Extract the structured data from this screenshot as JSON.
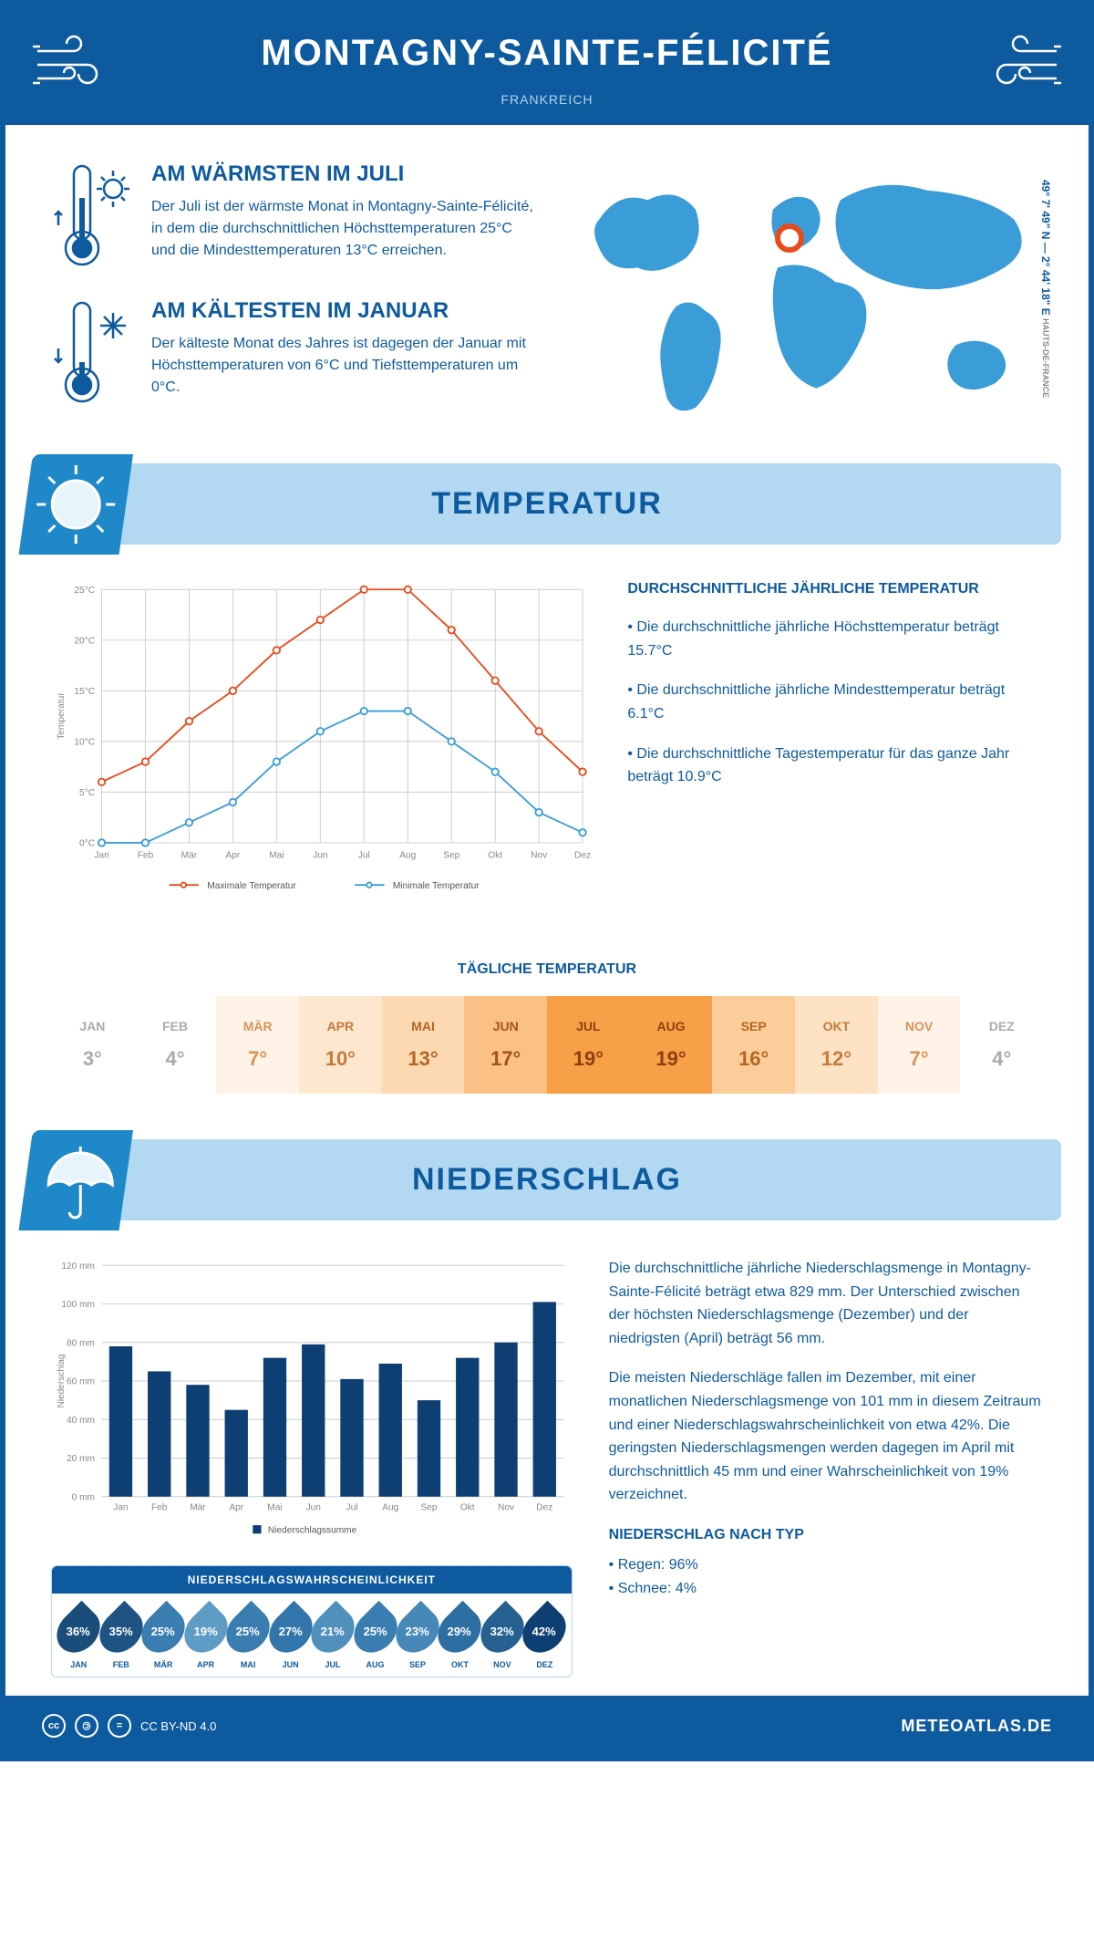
{
  "header": {
    "title": "MONTAGNY-SAINTE-FÉLICITÉ",
    "subtitle": "FRANKREICH"
  },
  "coords": {
    "main": "49° 7' 49\" N — 2° 44' 18\" E",
    "region": "HAUTS-DE-FRANCE"
  },
  "warmest": {
    "title": "AM WÄRMSTEN IM JULI",
    "text": "Der Juli ist der wärmste Monat in Montagny-Sainte-Félicité, in dem die durchschnittlichen Höchsttemperaturen 25°C und die Mindesttemperaturen 13°C erreichen."
  },
  "coldest": {
    "title": "AM KÄLTESTEN IM JANUAR",
    "text": "Der kälteste Monat des Jahres ist dagegen der Januar mit Höchsttemperaturen von 6°C und Tiefsttemperaturen um 0°C."
  },
  "temp_section": {
    "title": "TEMPERATUR"
  },
  "temp_chart": {
    "type": "line",
    "months": [
      "Jan",
      "Feb",
      "Mär",
      "Apr",
      "Mai",
      "Jun",
      "Jul",
      "Aug",
      "Sep",
      "Okt",
      "Nov",
      "Dez"
    ],
    "max_values": [
      6,
      8,
      12,
      15,
      19,
      22,
      25,
      25,
      21,
      16,
      11,
      7
    ],
    "min_values": [
      0,
      0,
      2,
      4,
      8,
      11,
      13,
      13,
      10,
      7,
      3,
      1
    ],
    "ylim": [
      0,
      25
    ],
    "ytick_step": 5,
    "yunit": "°C",
    "ylabel": "Temperatur",
    "max_color": "#e84c1c",
    "min_color": "#3b9dd8",
    "grid_color": "#cccccc",
    "line_width": 2,
    "marker_size": 4,
    "legend_max": "Maximale Temperatur",
    "legend_min": "Minimale Temperatur"
  },
  "temp_info": {
    "title": "DURCHSCHNITTLICHE JÄHRLICHE TEMPERATUR",
    "b1": "• Die durchschnittliche jährliche Höchsttemperatur beträgt 15.7°C",
    "b2": "• Die durchschnittliche jährliche Mindesttemperatur beträgt 6.1°C",
    "b3": "• Die durchschnittliche Tagestemperatur für das ganze Jahr beträgt 10.9°C"
  },
  "daily_temp": {
    "title": "TÄGLICHE TEMPERATUR",
    "months": [
      "JAN",
      "FEB",
      "MÄR",
      "APR",
      "MAI",
      "JUN",
      "JUL",
      "AUG",
      "SEP",
      "OKT",
      "NOV",
      "DEZ"
    ],
    "values": [
      "3°",
      "4°",
      "7°",
      "10°",
      "13°",
      "17°",
      "19°",
      "19°",
      "16°",
      "12°",
      "7°",
      "4°"
    ],
    "bg_colors": [
      "#ffffff",
      "#ffffff",
      "#fef3e6",
      "#fde7ce",
      "#fcd9b1",
      "#fac084",
      "#f7a047",
      "#f7a047",
      "#fbcd9a",
      "#fde2c3",
      "#fef3e6",
      "#ffffff"
    ],
    "text_colors": [
      "#aaaaaa",
      "#aaaaaa",
      "#d8935a",
      "#c77a3a",
      "#b56524",
      "#a4521a",
      "#8e4010",
      "#8e4010",
      "#b56524",
      "#c77a3a",
      "#d8935a",
      "#aaaaaa"
    ]
  },
  "precip_section": {
    "title": "NIEDERSCHLAG"
  },
  "precip_chart": {
    "type": "bar",
    "months": [
      "Jan",
      "Feb",
      "Mär",
      "Apr",
      "Mai",
      "Jun",
      "Jul",
      "Aug",
      "Sep",
      "Okt",
      "Nov",
      "Dez"
    ],
    "values": [
      78,
      65,
      58,
      45,
      72,
      79,
      61,
      69,
      50,
      72,
      80,
      101
    ],
    "ylim": [
      0,
      120
    ],
    "ytick_step": 20,
    "yunit": " mm",
    "ylabel": "Niederschlag",
    "bar_color": "#0d3f73",
    "grid_color": "#cccccc",
    "bar_width": 0.6,
    "legend": "Niederschlagssumme"
  },
  "precip_info": {
    "p1": "Die durchschnittliche jährliche Niederschlagsmenge in Montagny-Sainte-Félicité beträgt etwa 829 mm. Der Unterschied zwischen der höchsten Niederschlagsmenge (Dezember) und der niedrigsten (April) beträgt 56 mm.",
    "p2": "Die meisten Niederschläge fallen im Dezember, mit einer monatlichen Niederschlagsmenge von 101 mm in diesem Zeitraum und einer Niederschlagswahrscheinlichkeit von etwa 42%. Die geringsten Niederschlagsmengen werden dagegen im April mit durchschnittlich 45 mm und einer Wahrscheinlichkeit von 19% verzeichnet.",
    "type_title": "NIEDERSCHLAG NACH TYP",
    "rain": "• Regen: 96%",
    "snow": "• Schnee: 4%"
  },
  "precip_prob": {
    "title": "NIEDERSCHLAGSWAHRSCHEINLICHKEIT",
    "months": [
      "JAN",
      "FEB",
      "MÄR",
      "APR",
      "MAI",
      "JUN",
      "JUL",
      "AUG",
      "SEP",
      "OKT",
      "NOV",
      "DEZ"
    ],
    "values": [
      "36%",
      "35%",
      "25%",
      "19%",
      "25%",
      "27%",
      "21%",
      "25%",
      "23%",
      "29%",
      "32%",
      "42%"
    ],
    "colors": [
      "#1a4d7a",
      "#1d5484",
      "#3a7db0",
      "#5f9cc5",
      "#3a7db0",
      "#3376ab",
      "#4f90bd",
      "#3a7db0",
      "#4688b7",
      "#2d6fa3",
      "#266192",
      "#0d3f73"
    ]
  },
  "footer": {
    "license": "CC BY-ND 4.0",
    "site": "METEOATLAS.DE"
  },
  "colors": {
    "primary": "#0d5a9e",
    "light_blue": "#b3d9f2",
    "accent_blue": "#1e88c9"
  }
}
